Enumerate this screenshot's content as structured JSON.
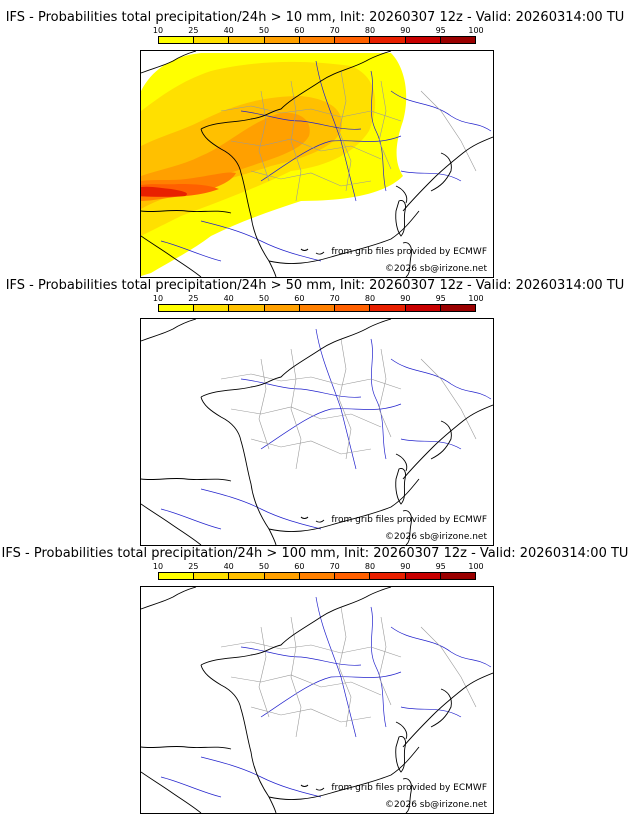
{
  "legend": {
    "ticks": [
      "10",
      "25",
      "40",
      "50",
      "60",
      "70",
      "80",
      "90",
      "95",
      "100"
    ],
    "colors": [
      "#ffff00",
      "#ffe000",
      "#ffc000",
      "#ffa000",
      "#ff8000",
      "#ff6000",
      "#e82000",
      "#c80000",
      "#9a0000",
      "#5c0000"
    ]
  },
  "map_colors": {
    "coast": "#000000",
    "rivers": "#2222cc",
    "borders": "#9a9a9a"
  },
  "panels": [
    {
      "title": "IFS - Probabilities total precipitation/24h > 10 mm, Init: 20260307 12z - Valid: 20260314:00 TU",
      "credit_source": "from grib files provided by ECMWF",
      "credit_copyright": "©2026 sb@irizone.net",
      "has_precip": true
    },
    {
      "title": "IFS - Probabilities total precipitation/24h > 50 mm, Init: 20260307 12z - Valid: 20260314:00 TU",
      "credit_source": "from grib files provided by ECMWF",
      "credit_copyright": "©2026 sb@irizone.net",
      "has_precip": false
    },
    {
      "title": "IFS - Probabilities total precipitation/24h > 100 mm, Init: 20260307 12z - Valid: 20260314:00 TU",
      "credit_source": "from grib files provided by ECMWF",
      "credit_copyright": "©2026 sb@irizone.net",
      "has_precip": false
    }
  ]
}
